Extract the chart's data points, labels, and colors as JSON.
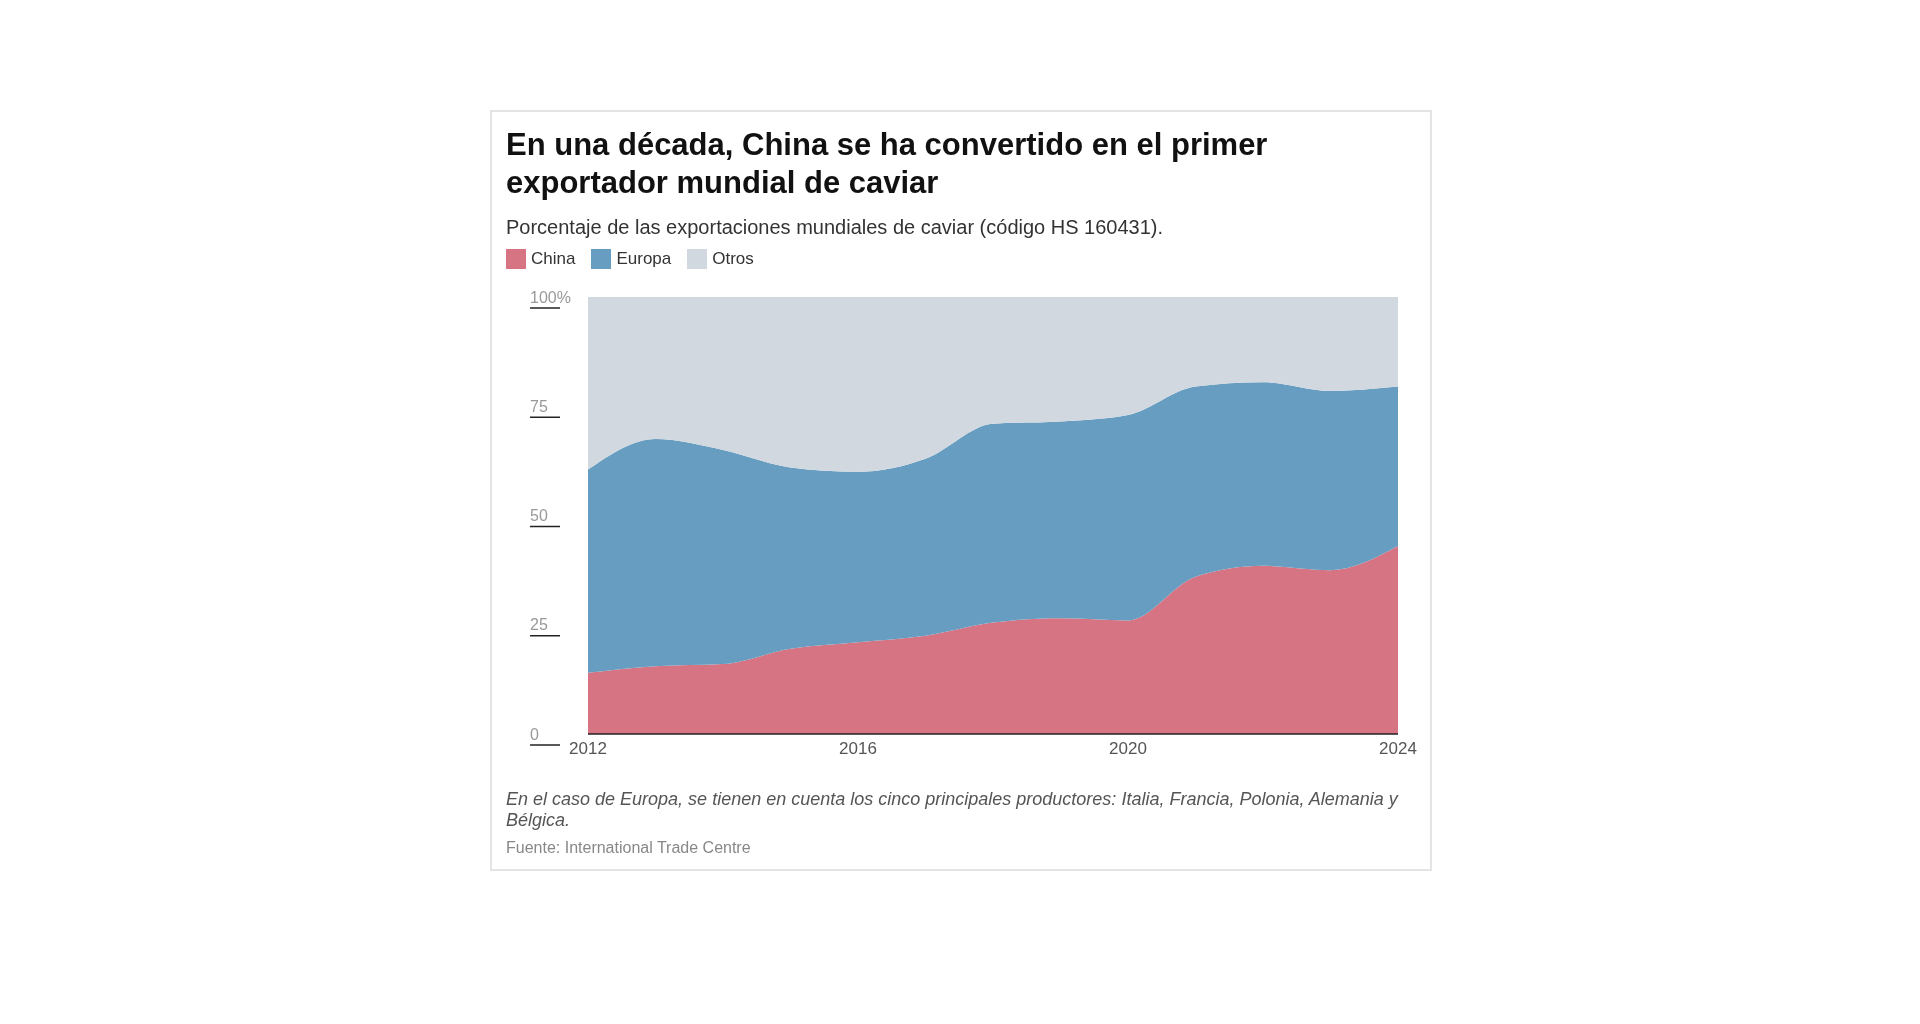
{
  "chart_data": {
    "type": "area",
    "title": "En una década, China se ha convertido en el primer exportador mundial de caviar",
    "subtitle": "Porcentaje de las exportaciones mundiales de caviar (código HS 160431).",
    "x": [
      2012,
      2013,
      2014,
      2015,
      2016,
      2017,
      2018,
      2019,
      2020,
      2021,
      2022,
      2023,
      2024
    ],
    "stacked": true,
    "series": [
      {
        "name": "China",
        "color": "#d77483",
        "values": [
          14,
          15.5,
          16,
          19.5,
          21,
          22.5,
          25.5,
          26.5,
          26,
          36,
          38.5,
          37.5,
          43
        ]
      },
      {
        "name": "Europa",
        "color": "#669dc0",
        "values": [
          46.5,
          52,
          49,
          41.5,
          39,
          40.5,
          45.5,
          45,
          47,
          43.5,
          42,
          41,
          36.5
        ]
      },
      {
        "name": "Otros",
        "color": "#d2d8df",
        "values": [
          39.5,
          32.5,
          35,
          39,
          40,
          37,
          29,
          28.5,
          27,
          20.5,
          19.5,
          21.5,
          20.5
        ]
      }
    ],
    "xlim": [
      2012,
      2024
    ],
    "xticks": [
      2012,
      2016,
      2020,
      2024
    ],
    "ylim": [
      0,
      100
    ],
    "yticks": [
      0,
      25,
      50,
      75,
      {
        "value": 100,
        "label": "100%"
      }
    ],
    "grid": false,
    "legend": "top left",
    "annotations": [
      "En el caso de Europa, se tienen en cuenta los cinco principales productores: Italia, Francia, Polonia, Alemania y Bélgica.",
      "Fuente: International Trade Centre"
    ]
  }
}
